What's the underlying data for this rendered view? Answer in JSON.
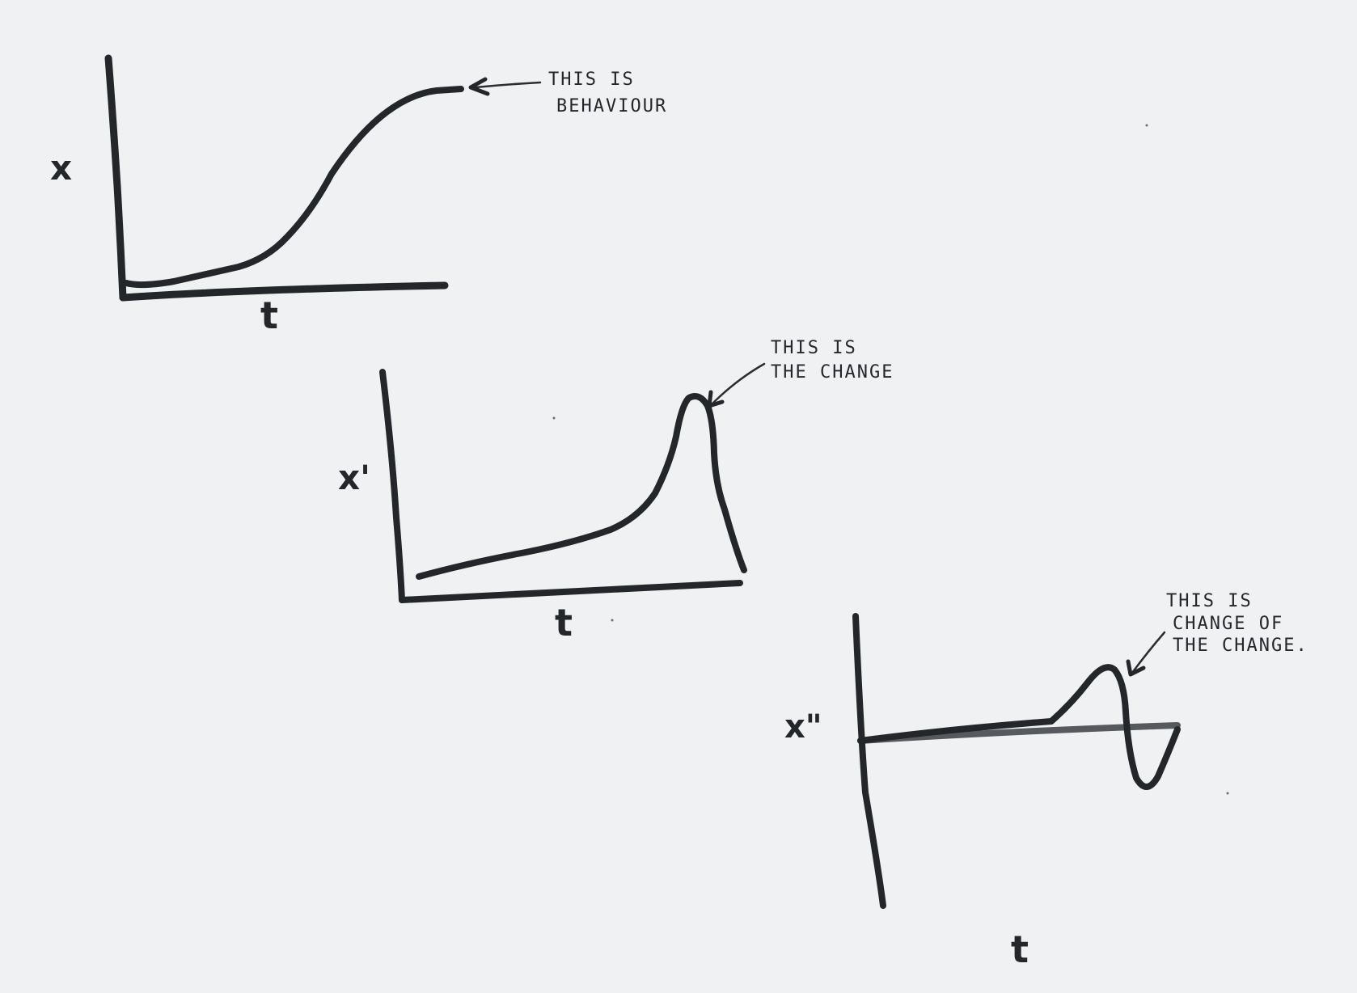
{
  "diagrams": [
    {
      "y_label": "x",
      "x_label": "t",
      "annotation": [
        "THIS IS",
        "BEHAVIOUR"
      ]
    },
    {
      "y_label": "x'",
      "x_label": "t",
      "annotation": [
        "THIS IS",
        "THE CHANGE"
      ]
    },
    {
      "y_label": "x\"",
      "x_label": "t",
      "annotation": [
        "THIS IS",
        "CHANGE OF",
        "THE CHANGE."
      ]
    }
  ],
  "colors": {
    "ink": "#23262b",
    "paper": "#f0f1f3"
  }
}
